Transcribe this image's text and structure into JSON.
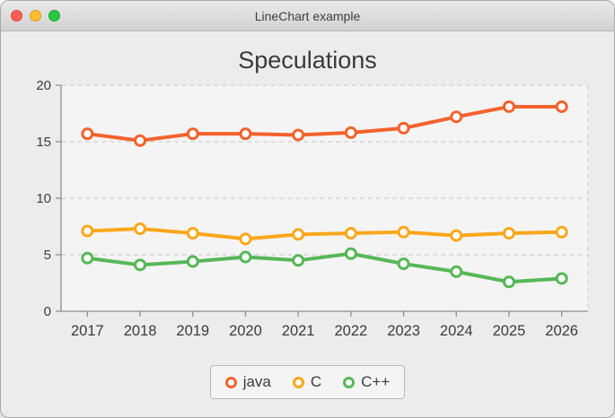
{
  "window": {
    "title": "LineChart example"
  },
  "chart_data": {
    "type": "line",
    "title": "Speculations",
    "categories": [
      "2017",
      "2018",
      "2019",
      "2020",
      "2021",
      "2022",
      "2023",
      "2024",
      "2025",
      "2026"
    ],
    "series": [
      {
        "name": "java",
        "color": "#f3622d",
        "values": [
          15.7,
          15.1,
          15.7,
          15.7,
          15.6,
          15.8,
          16.2,
          17.2,
          18.1,
          18.1
        ]
      },
      {
        "name": "C",
        "color": "#fba71b",
        "values": [
          7.1,
          7.3,
          6.9,
          6.4,
          6.8,
          6.9,
          7.0,
          6.7,
          6.9,
          7.0
        ]
      },
      {
        "name": "C++",
        "color": "#57b757",
        "values": [
          4.7,
          4.1,
          4.4,
          4.8,
          4.5,
          5.1,
          4.2,
          3.5,
          2.6,
          2.9
        ]
      }
    ],
    "ylim": [
      0,
      20
    ],
    "y_ticks": [
      0,
      5,
      10,
      15,
      20
    ],
    "grid": "dashed-horizontal",
    "legend_position": "bottom",
    "colors": {
      "plot_background": "#f4f4f4",
      "gridline": "#cfcfcf",
      "axis": "#8f8f8f",
      "tick_label": "#3b3b3b"
    }
  }
}
